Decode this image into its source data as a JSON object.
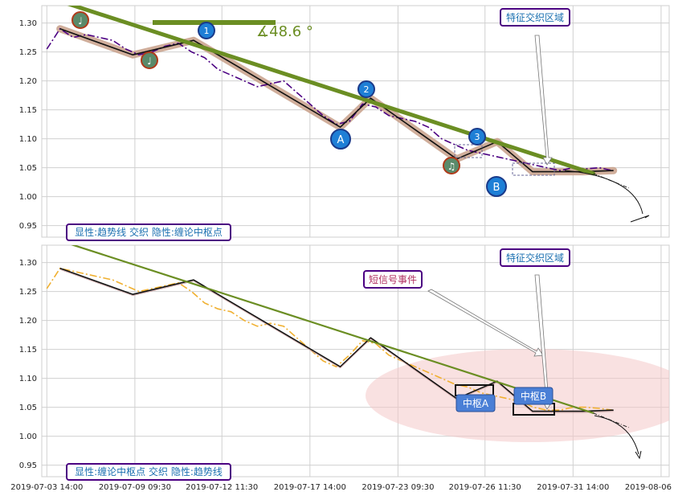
{
  "chart_data": [
    {
      "type": "line",
      "panel": "top",
      "ylim": [
        0.93,
        1.33
      ],
      "yticks": [
        "0.95",
        "1.00",
        "1.05",
        "1.10",
        "1.15",
        "1.20",
        "1.25",
        "1.30"
      ],
      "xtick_labels": [
        "2019-07-03 14:00",
        "2019-07-09 09:30",
        "2019-07-12 11:30",
        "2019-07-17 14:00",
        "2019-07-23 09:30",
        "2019-07-26 11:30",
        "2019-07-31 14:00",
        "2019-08-06 10:00"
      ],
      "grid": true,
      "annotations": {
        "angle_label": "∡48.6 °",
        "region_label": "特征交织区域",
        "panel_label": "显性:趋势线 交织 隐性:缠论中枢点",
        "markers": [
          "1",
          "2",
          "3",
          "A",
          "B",
          "♩",
          "♩",
          "♫"
        ]
      },
      "series": [
        {
          "role": "price",
          "values": [
            1.255,
            1.29,
            1.275,
            1.28,
            1.275,
            1.27,
            1.255,
            1.245,
            1.25,
            1.26,
            1.265,
            1.25,
            1.24,
            1.22,
            1.21,
            1.2,
            1.19,
            1.195,
            1.2,
            1.18,
            1.16,
            1.14,
            1.125,
            1.13,
            1.16,
            1.155,
            1.14,
            1.135,
            1.13,
            1.12,
            1.1,
            1.09,
            1.08,
            1.075,
            1.07,
            1.065,
            1.06,
            1.055,
            1.05,
            1.045,
            1.05,
            1.048,
            1.05,
            1.045
          ]
        },
        {
          "role": "stroke",
          "points": [
            [
              1.3,
              1.29
            ],
            [
              8.5,
              1.245
            ],
            [
              14.5,
              1.27
            ],
            [
              29.0,
              1.12
            ],
            [
              32.0,
              1.17
            ],
            [
              40.5,
              1.065
            ],
            [
              44.5,
              1.095
            ],
            [
              48.0,
              1.043
            ],
            [
              53.0,
              1.043
            ],
            [
              56.0,
              1.045
            ]
          ]
        },
        {
          "role": "trendline",
          "points": [
            [
              0.0,
              1.345
            ],
            [
              54.0,
              1.04
            ]
          ]
        },
        {
          "role": "trendline-projection",
          "points": [
            [
              54.0,
              1.04
            ],
            [
              57.5,
              1.015
            ]
          ]
        }
      ]
    },
    {
      "type": "line",
      "panel": "bottom",
      "ylim": [
        0.93,
        1.33
      ],
      "yticks": [
        "0.95",
        "1.00",
        "1.05",
        "1.10",
        "1.15",
        "1.20",
        "1.25",
        "1.30"
      ],
      "xtick_labels": [
        "2019-07-03 14:00",
        "2019-07-09 09:30",
        "2019-07-12 11:30",
        "2019-07-17 14:00",
        "2019-07-23 09:30",
        "2019-07-26 11:30",
        "2019-07-31 14:00",
        "2019-08-06 10:00"
      ],
      "grid": true,
      "annotations": {
        "event_label": "短信号事件",
        "region_label": "特征交织区域",
        "pivot_a": "中枢A",
        "pivot_b": "中枢B",
        "panel_label": "显性:缠论中枢点 交织 隐性:趋势线"
      },
      "series": [
        {
          "role": "price",
          "values": [
            1.255,
            1.29,
            1.285,
            1.28,
            1.275,
            1.27,
            1.26,
            1.25,
            1.255,
            1.26,
            1.265,
            1.25,
            1.23,
            1.22,
            1.215,
            1.2,
            1.19,
            1.195,
            1.19,
            1.17,
            1.15,
            1.13,
            1.12,
            1.14,
            1.165,
            1.16,
            1.14,
            1.13,
            1.12,
            1.11,
            1.1,
            1.09,
            1.085,
            1.075,
            1.07,
            1.065,
            1.06,
            1.05,
            1.045,
            1.045,
            1.05,
            1.05,
            1.048,
            1.045
          ]
        },
        {
          "role": "stroke",
          "points": [
            [
              1.3,
              1.29
            ],
            [
              8.5,
              1.245
            ],
            [
              14.5,
              1.27
            ],
            [
              29.0,
              1.12
            ],
            [
              32.0,
              1.17
            ],
            [
              40.5,
              1.065
            ],
            [
              44.5,
              1.095
            ],
            [
              48.0,
              1.043
            ],
            [
              53.0,
              1.043
            ],
            [
              56.0,
              1.045
            ]
          ]
        },
        {
          "role": "trendline",
          "points": [
            [
              0.0,
              1.345
            ],
            [
              54.0,
              1.04
            ]
          ]
        },
        {
          "role": "trendline-projection",
          "points": [
            [
              54.0,
              1.04
            ],
            [
              57.5,
              1.015
            ]
          ]
        }
      ]
    }
  ],
  "colors": {
    "grid": "#d0d0d0",
    "trend": "#6b8e23",
    "price_top": "#4b0082",
    "price_bottom": "#f0b030",
    "stroke": "#111111",
    "shadow": "#c8a08a",
    "label_text": "#1a6fb0",
    "label_border": "#4b0082",
    "event_text": "#b03060",
    "marker_blue": "#1e7fd6",
    "marker_green": "#5a8a6a",
    "pivot_fill": "#4a7fd6",
    "ellipse": "#f4c8c8"
  }
}
